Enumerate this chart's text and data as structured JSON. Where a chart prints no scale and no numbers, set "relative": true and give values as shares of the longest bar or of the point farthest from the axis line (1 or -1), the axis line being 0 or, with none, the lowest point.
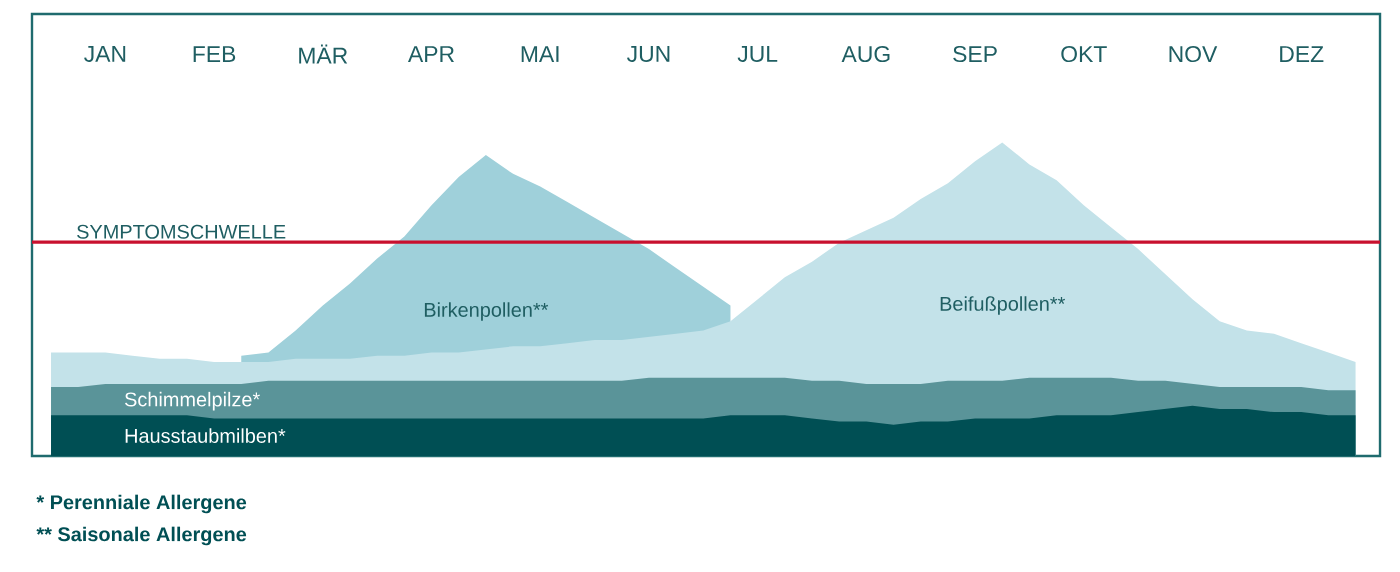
{
  "chart_data": {
    "type": "area",
    "relative": true,
    "categories": [
      null,
      null,
      "JAN",
      null,
      null,
      null,
      "FEB",
      null,
      null,
      null,
      "MÄR",
      null,
      null,
      null,
      "APR",
      null,
      null,
      null,
      "MAI",
      null,
      null,
      null,
      "JUN",
      null,
      null,
      null,
      "JUL",
      null,
      null,
      null,
      "AUG",
      null,
      null,
      null,
      "SEP",
      null,
      null,
      null,
      "OKT",
      null,
      null,
      null,
      "NOV",
      null,
      null,
      null,
      "DEZ",
      null,
      null
    ],
    "series": [
      {
        "name": "Beifußpollen**",
        "color": "#c3e2e9",
        "values": [
          0.33,
          0.33,
          0.33,
          0.32,
          0.31,
          0.31,
          0.3,
          0.3,
          0.3,
          0.31,
          0.31,
          0.31,
          0.32,
          0.32,
          0.33,
          0.33,
          0.34,
          0.35,
          0.35,
          0.36,
          0.37,
          0.37,
          0.38,
          0.39,
          0.4,
          0.43,
          0.5,
          0.57,
          0.62,
          0.68,
          0.72,
          0.76,
          0.82,
          0.87,
          0.94,
          1,
          0.93,
          0.88,
          0.8,
          0.73,
          0.66,
          0.58,
          0.5,
          0.43,
          0.4,
          0.39,
          0.36,
          0.33,
          0.3
        ]
      },
      {
        "name": "Birkenpollen**",
        "color": "#9fd0da",
        "values": [
          null,
          null,
          null,
          null,
          null,
          null,
          null,
          0.32,
          0.33,
          0.4,
          0.48,
          0.55,
          0.63,
          0.7,
          0.8,
          0.89,
          0.96,
          0.9,
          0.86,
          0.81,
          0.76,
          0.71,
          0.66,
          0.6,
          0.54,
          0.48,
          null,
          null,
          null,
          null,
          null,
          null,
          null,
          null,
          null,
          null,
          null,
          null,
          null,
          null,
          null,
          null,
          null,
          null,
          null,
          null,
          null,
          null,
          null
        ]
      },
      {
        "name": "Schimmelpilze*",
        "color": "#5a9499",
        "values": [
          0.22,
          0.22,
          0.23,
          0.23,
          0.23,
          0.23,
          0.23,
          0.23,
          0.24,
          0.24,
          0.24,
          0.24,
          0.24,
          0.24,
          0.24,
          0.24,
          0.24,
          0.24,
          0.24,
          0.24,
          0.24,
          0.24,
          0.25,
          0.25,
          0.25,
          0.25,
          0.25,
          0.25,
          0.24,
          0.24,
          0.23,
          0.23,
          0.23,
          0.24,
          0.24,
          0.24,
          0.25,
          0.25,
          0.25,
          0.25,
          0.24,
          0.24,
          0.23,
          0.22,
          0.22,
          0.22,
          0.22,
          0.21,
          0.21
        ]
      },
      {
        "name": "Hausstaubmilben*",
        "color": "#004f54",
        "values": [
          0.13,
          0.13,
          0.13,
          0.13,
          0.13,
          0.13,
          0.12,
          0.12,
          0.12,
          0.12,
          0.12,
          0.12,
          0.12,
          0.12,
          0.12,
          0.12,
          0.12,
          0.12,
          0.12,
          0.12,
          0.12,
          0.12,
          0.12,
          0.12,
          0.12,
          0.13,
          0.13,
          0.13,
          0.12,
          0.11,
          0.11,
          0.1,
          0.11,
          0.11,
          0.12,
          0.12,
          0.12,
          0.13,
          0.13,
          0.13,
          0.14,
          0.15,
          0.16,
          0.15,
          0.15,
          0.14,
          0.14,
          0.13,
          0.13
        ]
      }
    ],
    "ref_lines": [
      {
        "axis": "y",
        "value": 0.682,
        "label": "SYMPTOMSCHWELLE",
        "color": "#c8102e"
      }
    ],
    "annotations": [
      "*   Perenniale Allergene",
      "** Saisonale Allergene"
    ]
  }
}
